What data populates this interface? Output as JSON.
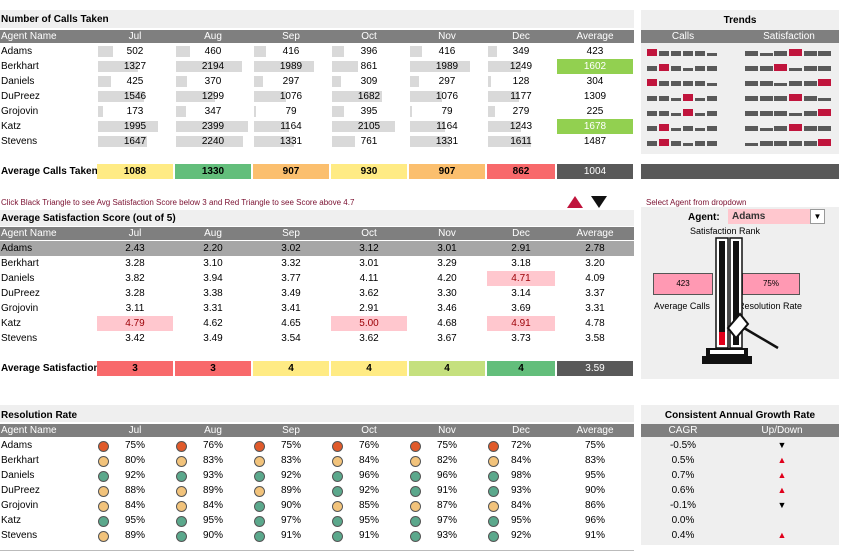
{
  "calls": {
    "title": "Number of Calls Taken",
    "header": [
      "Agent Name",
      "Jul",
      "Aug",
      "Sep",
      "Oct",
      "Nov",
      "Dec",
      "Average"
    ],
    "rows": [
      {
        "name": "Adams",
        "values": [
          "502",
          "460",
          "416",
          "396",
          "416",
          "349"
        ],
        "avg": "423"
      },
      {
        "name": "Berkhart",
        "values": [
          "1327",
          "2194",
          "1989",
          "861",
          "1989",
          "1249"
        ],
        "avg": "1602"
      },
      {
        "name": "Daniels",
        "values": [
          "425",
          "370",
          "297",
          "309",
          "297",
          "128"
        ],
        "avg": "304"
      },
      {
        "name": "DuPreez",
        "values": [
          "1546",
          "1299",
          "1076",
          "1682",
          "1076",
          "1177"
        ],
        "avg": "1309"
      },
      {
        "name": "Grojovin",
        "values": [
          "173",
          "347",
          "79",
          "395",
          "79",
          "279"
        ],
        "avg": "225"
      },
      {
        "name": "Katz",
        "values": [
          "1995",
          "2399",
          "1164",
          "2105",
          "1164",
          "1243"
        ],
        "avg": "1678"
      },
      {
        "name": "Stevens",
        "values": [
          "1647",
          "2240",
          "1331",
          "761",
          "1331",
          "1611"
        ],
        "avg": "1487"
      }
    ],
    "avg_label": "Average Calls Taken",
    "avg_values": [
      "1088",
      "1330",
      "907",
      "930",
      "907",
      "862"
    ],
    "avg_total": "1004"
  },
  "trends": {
    "title": "Trends",
    "col_calls": "Calls",
    "col_satisfaction": "Satisfaction"
  },
  "instruction": "Click Black Triangle to see Avg Satisfaction Score below 3 and Red Triangle to see Score above 4.7",
  "satisfaction": {
    "title": "Average Satisfaction Score (out of 5)",
    "header": [
      "Agent Name",
      "Jul",
      "Aug",
      "Sep",
      "Oct",
      "Nov",
      "Dec",
      "Average"
    ],
    "rows": [
      {
        "name": "Adams",
        "values": [
          "2.43",
          "2.20",
          "3.02",
          "3.12",
          "3.01",
          "2.91"
        ],
        "avg": "2.78"
      },
      {
        "name": "Berkhart",
        "values": [
          "3.28",
          "3.10",
          "3.32",
          "3.01",
          "3.29",
          "3.18"
        ],
        "avg": "3.20"
      },
      {
        "name": "Daniels",
        "values": [
          "3.82",
          "3.94",
          "3.77",
          "4.11",
          "4.20",
          "4.71"
        ],
        "avg": "4.09"
      },
      {
        "name": "DuPreez",
        "values": [
          "3.28",
          "3.38",
          "3.49",
          "3.62",
          "3.30",
          "3.14"
        ],
        "avg": "3.37"
      },
      {
        "name": "Grojovin",
        "values": [
          "3.11",
          "3.31",
          "3.41",
          "2.91",
          "3.46",
          "3.69"
        ],
        "avg": "3.31"
      },
      {
        "name": "Katz",
        "values": [
          "4.79",
          "4.62",
          "4.65",
          "5.00",
          "4.68",
          "4.91"
        ],
        "avg": "4.78"
      },
      {
        "name": "Stevens",
        "values": [
          "3.42",
          "3.49",
          "3.54",
          "3.62",
          "3.67",
          "3.73"
        ],
        "avg": "3.58"
      }
    ],
    "avg_label": "Average Satisfaction",
    "avg_values": [
      "3",
      "3",
      "4",
      "4",
      "4",
      "4"
    ],
    "avg_total": "3.59"
  },
  "agent_panel": {
    "select_label": "Select Agent from dropdown",
    "agent_label": "Agent:",
    "agent_value": "Adams",
    "rank_label": "Satisfaction Rank",
    "calls_value": "423",
    "calls_label": "Average Calls",
    "resolution_value": "75%",
    "resolution_label": "Resolution Rate"
  },
  "resolution": {
    "title": "Resolution Rate",
    "header": [
      "Agent Name",
      "Jul",
      "Aug",
      "Sep",
      "Oct",
      "Nov",
      "Dec",
      "Average"
    ],
    "rows": [
      {
        "name": "Adams",
        "values": [
          "75%",
          "76%",
          "75%",
          "76%",
          "75%",
          "72%"
        ],
        "avg": "75%"
      },
      {
        "name": "Berkhart",
        "values": [
          "80%",
          "83%",
          "83%",
          "84%",
          "82%",
          "84%"
        ],
        "avg": "83%"
      },
      {
        "name": "Daniels",
        "values": [
          "92%",
          "93%",
          "92%",
          "96%",
          "96%",
          "98%"
        ],
        "avg": "95%"
      },
      {
        "name": "DuPreez",
        "values": [
          "88%",
          "89%",
          "89%",
          "92%",
          "91%",
          "93%"
        ],
        "avg": "90%"
      },
      {
        "name": "Grojovin",
        "values": [
          "84%",
          "84%",
          "90%",
          "85%",
          "87%",
          "84%"
        ],
        "avg": "86%"
      },
      {
        "name": "Katz",
        "values": [
          "95%",
          "95%",
          "97%",
          "95%",
          "97%",
          "95%"
        ],
        "avg": "96%"
      },
      {
        "name": "Stevens",
        "values": [
          "89%",
          "90%",
          "91%",
          "91%",
          "93%",
          "92%"
        ],
        "avg": "91%"
      }
    ]
  },
  "cagr": {
    "title": "Consistent Annual Growth Rate",
    "col_cagr": "CAGR",
    "col_updown": "Up/Down",
    "rows": [
      {
        "value": "-0.5%",
        "dir": "down"
      },
      {
        "value": "0.5%",
        "dir": "up"
      },
      {
        "value": "0.7%",
        "dir": "up"
      },
      {
        "value": "0.6%",
        "dir": "up"
      },
      {
        "value": "-0.1%",
        "dir": "down"
      },
      {
        "value": "0.0%",
        "dir": "none"
      },
      {
        "value": "0.4%",
        "dir": "up"
      }
    ]
  },
  "colors": {
    "green_strong": "#92d050",
    "green": "#63be7b",
    "yellow": "#ffeb84",
    "orange": "#fbbf6e",
    "red": "#f8696b",
    "pink": "#ffc7ce",
    "pink_text": "#9c0006",
    "dot_red": "#e05a2b",
    "dot_yellow": "#f2c37b",
    "dot_green": "#5ba88c"
  }
}
